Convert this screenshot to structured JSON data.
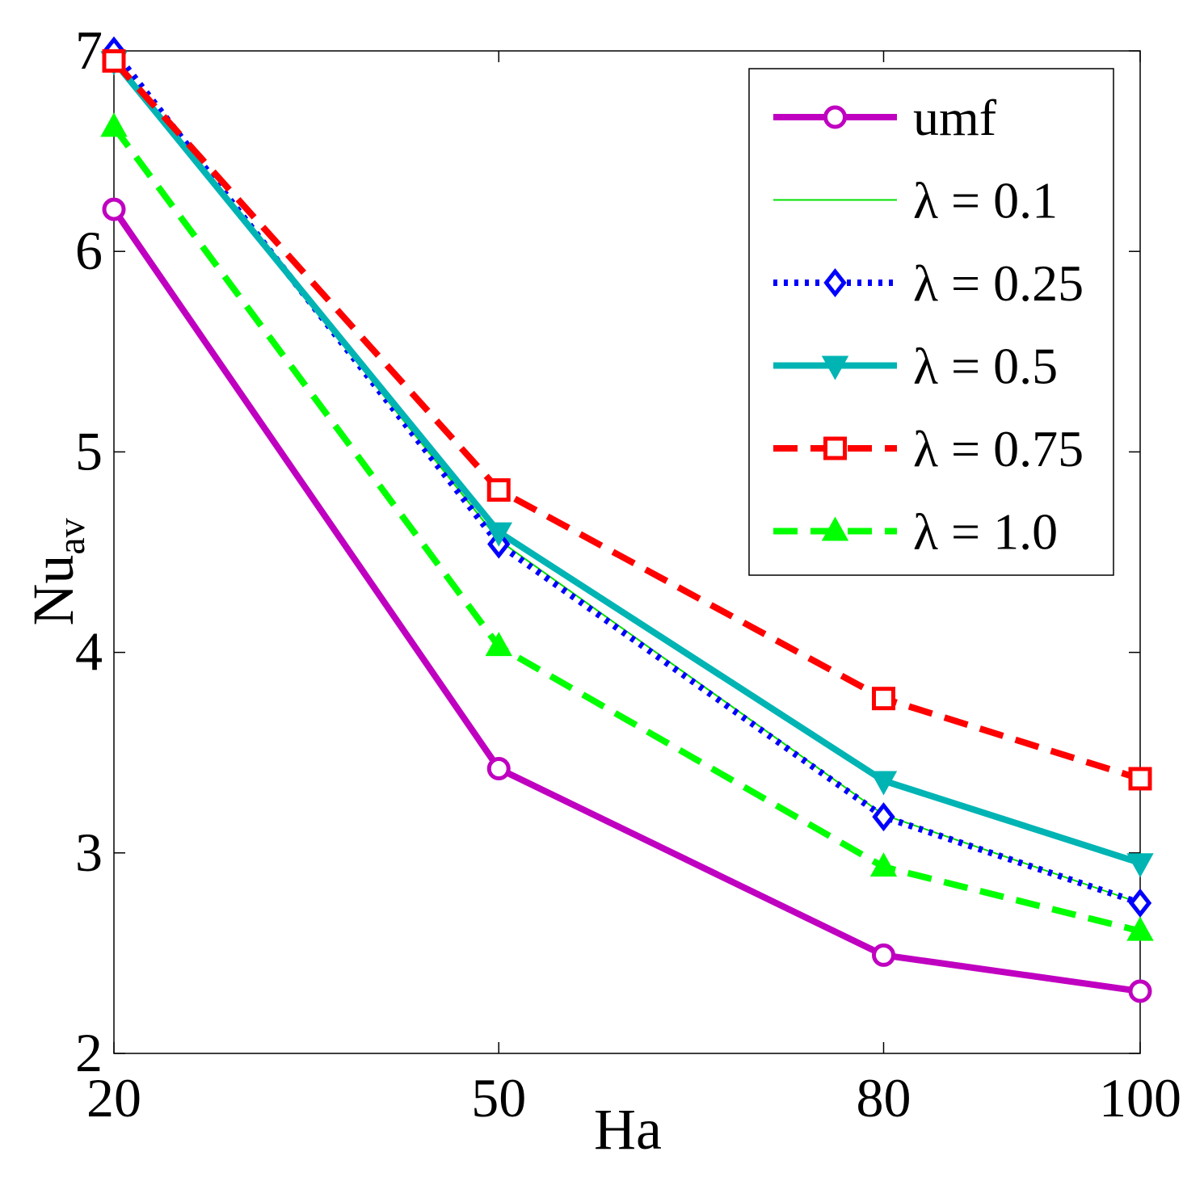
{
  "chart_data": {
    "type": "line",
    "title": "",
    "xlabel": "Ha",
    "ylabel_main": "Nu",
    "ylabel_sub": "av",
    "x": [
      20,
      50,
      80,
      100
    ],
    "x_tick_labels": [
      "20",
      "50",
      "80",
      "100"
    ],
    "y_ticks": [
      2,
      3,
      4,
      5,
      6,
      7
    ],
    "y_tick_labels": [
      "2",
      "3",
      "4",
      "5",
      "6",
      "7"
    ],
    "xlim": [
      20,
      100
    ],
    "ylim": [
      2,
      7
    ],
    "grid": false,
    "legend_position": "top-right",
    "series": [
      {
        "name": "umf",
        "color": "#c000c0",
        "dash": "solid",
        "marker": "circle",
        "values": [
          6.21,
          3.42,
          2.49,
          2.31
        ]
      },
      {
        "name": "λ = 0.1",
        "color": "#00e000",
        "dash": "solid-thin",
        "marker": "none",
        "values": [
          6.97,
          4.56,
          3.19,
          2.75
        ]
      },
      {
        "name": "λ = 0.25",
        "color": "#0000ff",
        "dash": "dotted",
        "marker": "diamond",
        "values": [
          7.0,
          4.54,
          3.18,
          2.75
        ]
      },
      {
        "name": "λ = 0.5",
        "color": "#00b4b4",
        "dash": "solid",
        "marker": "triangle-down",
        "values": [
          6.95,
          4.6,
          3.36,
          2.95
        ]
      },
      {
        "name": "λ = 0.75",
        "color": "#ff0000",
        "dash": "dashed",
        "marker": "square",
        "values": [
          6.95,
          4.81,
          3.77,
          3.37
        ]
      },
      {
        "name": "λ = 1.0",
        "color": "#00ff00",
        "dash": "dashed",
        "marker": "triangle-up",
        "values": [
          6.62,
          4.03,
          2.93,
          2.61
        ]
      }
    ]
  }
}
